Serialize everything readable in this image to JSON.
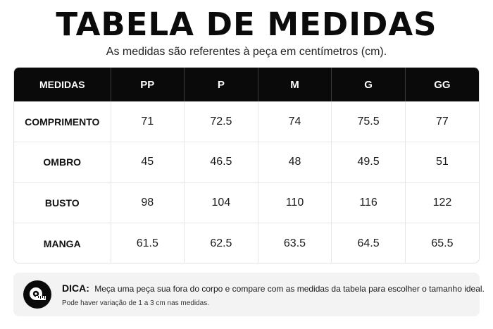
{
  "title": "TABELA DE MEDIDAS",
  "subtitle": "As medidas são referentes à peça em centímetros (cm).",
  "table": {
    "header": [
      "MEDIDAS",
      "PP",
      "P",
      "M",
      "G",
      "GG"
    ],
    "rows": [
      {
        "label": "COMPRIMENTO",
        "values": [
          "71",
          "72.5",
          "74",
          "75.5",
          "77"
        ]
      },
      {
        "label": "OMBRO",
        "values": [
          "45",
          "46.5",
          "48",
          "49.5",
          "51"
        ]
      },
      {
        "label": "BUSTO",
        "values": [
          "98",
          "104",
          "110",
          "116",
          "122"
        ]
      },
      {
        "label": "MANGA",
        "values": [
          "61.5",
          "62.5",
          "63.5",
          "64.5",
          "65.5"
        ]
      }
    ]
  },
  "tip": {
    "icon": "measuring-tape-icon",
    "label": "DICA:",
    "text": "Meça uma peça sua fora do corpo e compare com as medidas da tabela para escolher o tamanho ideal.",
    "note": "Pode haver variação de 1 a 3 cm nas medidas."
  },
  "colors": {
    "header_bg": "#0a0a0a",
    "header_text": "#ffffff",
    "tip_bg": "#f3f3f3"
  }
}
